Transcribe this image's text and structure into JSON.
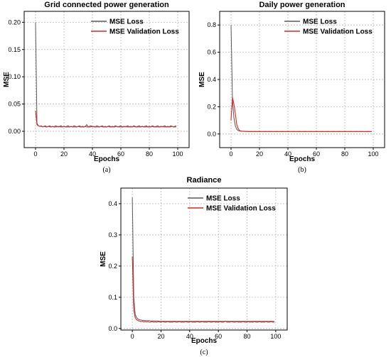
{
  "chart_data": [
    {
      "type": "line",
      "caption": "(a)",
      "title": "Grid connected power generation",
      "xlabel": "Epochs",
      "ylabel": "MSE",
      "xlim": [
        -8,
        108
      ],
      "ylim": [
        -0.03,
        0.22
      ],
      "xticks": [
        0,
        20,
        40,
        60,
        80,
        100
      ],
      "yticks": [
        0.0,
        0.05,
        0.1,
        0.15,
        0.2
      ],
      "ytick_labels": [
        "0.00",
        "0.05",
        "0.10",
        "0.15",
        "0.20"
      ],
      "grid": true,
      "legend_position": "top-right",
      "x": [
        0,
        1,
        2,
        3,
        4,
        5,
        6,
        7,
        8,
        9,
        10,
        11,
        12,
        13,
        14,
        15,
        16,
        17,
        18,
        19,
        20,
        21,
        22,
        23,
        24,
        25,
        26,
        27,
        28,
        29,
        30,
        31,
        32,
        33,
        34,
        35,
        36,
        37,
        38,
        39,
        40,
        41,
        42,
        43,
        44,
        45,
        46,
        47,
        48,
        49,
        50,
        51,
        52,
        53,
        54,
        55,
        56,
        57,
        58,
        59,
        60,
        61,
        62,
        63,
        64,
        65,
        66,
        67,
        68,
        69,
        70,
        71,
        72,
        73,
        74,
        75,
        76,
        77,
        78,
        79,
        80,
        81,
        82,
        83,
        84,
        85,
        86,
        87,
        88,
        89,
        90,
        91,
        92,
        93,
        94,
        95,
        96,
        97,
        98,
        99
      ],
      "series": [
        {
          "name": "MSE Loss",
          "color": "#5a5a5a",
          "values": [
            0.2,
            0.015,
            0.01,
            0.009,
            0.009,
            0.008,
            0.009,
            0.008,
            0.008,
            0.009,
            0.008,
            0.008,
            0.009,
            0.008,
            0.008,
            0.008,
            0.009,
            0.008,
            0.008,
            0.008,
            0.009,
            0.008,
            0.008,
            0.008,
            0.008,
            0.009,
            0.008,
            0.008,
            0.008,
            0.008,
            0.009,
            0.008,
            0.008,
            0.008,
            0.008,
            0.009,
            0.008,
            0.008,
            0.008,
            0.008,
            0.009,
            0.008,
            0.008,
            0.008,
            0.008,
            0.008,
            0.009,
            0.008,
            0.008,
            0.008,
            0.008,
            0.009,
            0.008,
            0.008,
            0.008,
            0.008,
            0.008,
            0.009,
            0.008,
            0.008,
            0.008,
            0.008,
            0.008,
            0.009,
            0.008,
            0.008,
            0.008,
            0.008,
            0.008,
            0.009,
            0.008,
            0.008,
            0.008,
            0.008,
            0.008,
            0.009,
            0.008,
            0.008,
            0.008,
            0.008,
            0.008,
            0.008,
            0.009,
            0.008,
            0.008,
            0.008,
            0.008,
            0.008,
            0.008,
            0.009,
            0.008,
            0.008,
            0.008,
            0.008,
            0.008,
            0.008,
            0.009,
            0.008,
            0.008,
            0.008
          ]
        },
        {
          "name": "MSE Validation Loss",
          "color": "#d62828",
          "values": [
            0.038,
            0.012,
            0.01,
            0.009,
            0.01,
            0.008,
            0.009,
            0.01,
            0.008,
            0.009,
            0.01,
            0.008,
            0.009,
            0.008,
            0.01,
            0.009,
            0.008,
            0.009,
            0.01,
            0.008,
            0.009,
            0.008,
            0.009,
            0.01,
            0.008,
            0.009,
            0.008,
            0.01,
            0.009,
            0.008,
            0.009,
            0.01,
            0.008,
            0.009,
            0.008,
            0.009,
            0.012,
            0.008,
            0.009,
            0.01,
            0.008,
            0.009,
            0.008,
            0.01,
            0.009,
            0.008,
            0.009,
            0.01,
            0.008,
            0.009,
            0.008,
            0.009,
            0.01,
            0.008,
            0.009,
            0.008,
            0.01,
            0.009,
            0.008,
            0.009,
            0.01,
            0.008,
            0.009,
            0.008,
            0.009,
            0.01,
            0.008,
            0.009,
            0.008,
            0.01,
            0.009,
            0.008,
            0.009,
            0.01,
            0.008,
            0.009,
            0.008,
            0.009,
            0.01,
            0.008,
            0.009,
            0.008,
            0.01,
            0.009,
            0.008,
            0.009,
            0.01,
            0.008,
            0.009,
            0.008,
            0.009,
            0.01,
            0.008,
            0.009,
            0.008,
            0.01,
            0.009,
            0.008,
            0.009,
            0.01
          ]
        }
      ]
    },
    {
      "type": "line",
      "caption": "(b)",
      "title": "Daily power generation",
      "xlabel": "Epochs",
      "ylabel": "MSE",
      "xlim": [
        -8,
        108
      ],
      "ylim": [
        -0.1,
        0.9
      ],
      "xticks": [
        0,
        20,
        40,
        60,
        80,
        100
      ],
      "yticks": [
        0.0,
        0.2,
        0.4,
        0.6,
        0.8
      ],
      "ytick_labels": [
        "0.0",
        "0.2",
        "0.4",
        "0.6",
        "0.8"
      ],
      "grid": true,
      "legend_position": "top-right",
      "x": [
        0,
        1,
        2,
        3,
        4,
        5,
        6,
        7,
        8,
        9,
        10,
        11,
        12,
        13,
        14,
        15,
        16,
        17,
        18,
        19,
        20,
        21,
        22,
        23,
        24,
        25,
        26,
        27,
        28,
        29,
        30,
        31,
        32,
        33,
        34,
        35,
        36,
        37,
        38,
        39,
        40,
        41,
        42,
        43,
        44,
        45,
        46,
        47,
        48,
        49,
        50,
        51,
        52,
        53,
        54,
        55,
        56,
        57,
        58,
        59,
        60,
        61,
        62,
        63,
        64,
        65,
        66,
        67,
        68,
        69,
        70,
        71,
        72,
        73,
        74,
        75,
        76,
        77,
        78,
        79,
        80,
        81,
        82,
        83,
        84,
        85,
        86,
        87,
        88,
        89,
        90,
        91,
        92,
        93,
        94,
        95,
        96,
        97,
        98,
        99
      ],
      "series": [
        {
          "name": "MSE Loss",
          "color": "#5a5a5a",
          "values": [
            0.8,
            0.25,
            0.12,
            0.06,
            0.035,
            0.025,
            0.022,
            0.02,
            0.02,
            0.019,
            0.019,
            0.019,
            0.018,
            0.018,
            0.018,
            0.018,
            0.018,
            0.018,
            0.018,
            0.018,
            0.018,
            0.018,
            0.018,
            0.018,
            0.018,
            0.018,
            0.018,
            0.018,
            0.018,
            0.018,
            0.018,
            0.018,
            0.018,
            0.018,
            0.018,
            0.018,
            0.018,
            0.018,
            0.018,
            0.018,
            0.018,
            0.018,
            0.018,
            0.018,
            0.018,
            0.018,
            0.018,
            0.018,
            0.018,
            0.018,
            0.018,
            0.018,
            0.018,
            0.018,
            0.018,
            0.018,
            0.018,
            0.018,
            0.018,
            0.018,
            0.018,
            0.018,
            0.018,
            0.018,
            0.018,
            0.018,
            0.018,
            0.018,
            0.018,
            0.018,
            0.018,
            0.018,
            0.018,
            0.018,
            0.018,
            0.018,
            0.018,
            0.018,
            0.018,
            0.018,
            0.018,
            0.018,
            0.018,
            0.018,
            0.018,
            0.018,
            0.018,
            0.018,
            0.018,
            0.018,
            0.018,
            0.018,
            0.018,
            0.018,
            0.018,
            0.018,
            0.018,
            0.018,
            0.018,
            0.018
          ]
        },
        {
          "name": "MSE Validation Loss",
          "color": "#d62828",
          "values": [
            0.1,
            0.27,
            0.22,
            0.15,
            0.07,
            0.04,
            0.025,
            0.022,
            0.02,
            0.02,
            0.019,
            0.019,
            0.019,
            0.018,
            0.019,
            0.018,
            0.018,
            0.019,
            0.018,
            0.018,
            0.019,
            0.018,
            0.018,
            0.018,
            0.019,
            0.018,
            0.018,
            0.018,
            0.019,
            0.018,
            0.018,
            0.018,
            0.019,
            0.018,
            0.018,
            0.018,
            0.019,
            0.018,
            0.018,
            0.018,
            0.019,
            0.018,
            0.018,
            0.018,
            0.019,
            0.018,
            0.018,
            0.018,
            0.019,
            0.018,
            0.018,
            0.018,
            0.019,
            0.018,
            0.018,
            0.018,
            0.019,
            0.018,
            0.018,
            0.018,
            0.019,
            0.018,
            0.018,
            0.018,
            0.019,
            0.018,
            0.018,
            0.018,
            0.019,
            0.018,
            0.018,
            0.018,
            0.019,
            0.018,
            0.018,
            0.018,
            0.019,
            0.018,
            0.018,
            0.018,
            0.019,
            0.018,
            0.018,
            0.018,
            0.019,
            0.018,
            0.018,
            0.018,
            0.019,
            0.018,
            0.018,
            0.018,
            0.019,
            0.018,
            0.018,
            0.018,
            0.019,
            0.018,
            0.018,
            0.018
          ]
        }
      ]
    },
    {
      "type": "line",
      "caption": "(c)",
      "title": "Radiance",
      "xlabel": "Epochs",
      "ylabel": "MSE",
      "xlim": [
        -8,
        108
      ],
      "ylim": [
        -0.005,
        0.45
      ],
      "xticks": [
        0,
        20,
        40,
        60,
        80,
        100
      ],
      "yticks": [
        0.0,
        0.1,
        0.2,
        0.3,
        0.4
      ],
      "ytick_labels": [
        "0.0",
        "0.1",
        "0.2",
        "0.3",
        "0.4"
      ],
      "grid": true,
      "legend_position": "top-right",
      "x": [
        0,
        1,
        2,
        3,
        4,
        5,
        6,
        7,
        8,
        9,
        10,
        11,
        12,
        13,
        14,
        15,
        16,
        17,
        18,
        19,
        20,
        21,
        22,
        23,
        24,
        25,
        26,
        27,
        28,
        29,
        30,
        31,
        32,
        33,
        34,
        35,
        36,
        37,
        38,
        39,
        40,
        41,
        42,
        43,
        44,
        45,
        46,
        47,
        48,
        49,
        50,
        51,
        52,
        53,
        54,
        55,
        56,
        57,
        58,
        59,
        60,
        61,
        62,
        63,
        64,
        65,
        66,
        67,
        68,
        69,
        70,
        71,
        72,
        73,
        74,
        75,
        76,
        77,
        78,
        79,
        80,
        81,
        82,
        83,
        84,
        85,
        86,
        87,
        88,
        89,
        90,
        91,
        92,
        93,
        94,
        95,
        96,
        97,
        98,
        99
      ],
      "series": [
        {
          "name": "MSE Loss",
          "color": "#5a5a5a",
          "values": [
            0.42,
            0.1,
            0.045,
            0.035,
            0.03,
            0.028,
            0.027,
            0.026,
            0.026,
            0.025,
            0.025,
            0.025,
            0.025,
            0.024,
            0.024,
            0.024,
            0.024,
            0.024,
            0.024,
            0.023,
            0.023,
            0.023,
            0.023,
            0.023,
            0.023,
            0.023,
            0.023,
            0.023,
            0.023,
            0.023,
            0.023,
            0.023,
            0.023,
            0.023,
            0.023,
            0.023,
            0.023,
            0.023,
            0.023,
            0.023,
            0.023,
            0.023,
            0.023,
            0.023,
            0.023,
            0.023,
            0.023,
            0.023,
            0.023,
            0.023,
            0.023,
            0.023,
            0.023,
            0.023,
            0.023,
            0.023,
            0.023,
            0.023,
            0.023,
            0.023,
            0.023,
            0.023,
            0.023,
            0.023,
            0.023,
            0.023,
            0.023,
            0.023,
            0.023,
            0.023,
            0.023,
            0.023,
            0.023,
            0.023,
            0.023,
            0.023,
            0.023,
            0.023,
            0.023,
            0.023,
            0.023,
            0.023,
            0.023,
            0.023,
            0.023,
            0.023,
            0.023,
            0.023,
            0.023,
            0.023,
            0.023,
            0.023,
            0.023,
            0.023,
            0.023,
            0.023,
            0.023,
            0.023,
            0.023,
            0.023
          ]
        },
        {
          "name": "MSE Validation Loss",
          "color": "#d62828",
          "values": [
            0.23,
            0.06,
            0.035,
            0.028,
            0.025,
            0.024,
            0.022,
            0.023,
            0.021,
            0.022,
            0.021,
            0.022,
            0.02,
            0.021,
            0.022,
            0.02,
            0.021,
            0.02,
            0.022,
            0.021,
            0.02,
            0.022,
            0.021,
            0.02,
            0.021,
            0.022,
            0.02,
            0.021,
            0.02,
            0.022,
            0.021,
            0.02,
            0.021,
            0.022,
            0.02,
            0.021,
            0.02,
            0.022,
            0.021,
            0.02,
            0.021,
            0.022,
            0.02,
            0.021,
            0.02,
            0.022,
            0.021,
            0.02,
            0.021,
            0.022,
            0.02,
            0.021,
            0.02,
            0.022,
            0.021,
            0.02,
            0.021,
            0.022,
            0.02,
            0.021,
            0.02,
            0.022,
            0.021,
            0.02,
            0.021,
            0.024,
            0.02,
            0.021,
            0.02,
            0.022,
            0.021,
            0.02,
            0.021,
            0.022,
            0.02,
            0.021,
            0.02,
            0.022,
            0.021,
            0.02,
            0.021,
            0.022,
            0.02,
            0.021,
            0.02,
            0.022,
            0.021,
            0.02,
            0.021,
            0.022,
            0.02,
            0.021,
            0.02,
            0.022,
            0.021,
            0.02,
            0.021,
            0.022,
            0.02,
            0.021
          ]
        }
      ]
    }
  ]
}
